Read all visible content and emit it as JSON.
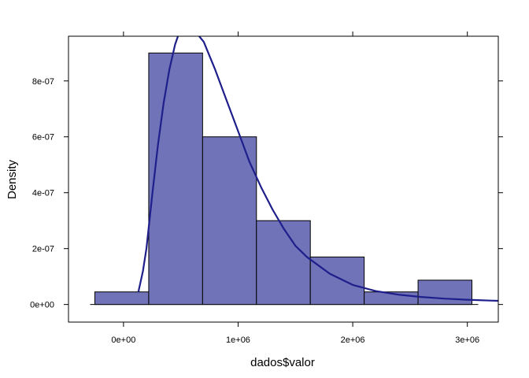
{
  "chart_data": {
    "type": "histogram",
    "xlabel": "dados$valor",
    "ylabel": "Density",
    "xlim": [
      -480000,
      3270000
    ],
    "ylim": [
      -6.3e-08,
      9.6e-07
    ],
    "x_ticks": [
      {
        "value": 0,
        "label": "0e+00"
      },
      {
        "value": 1000000,
        "label": "1e+06"
      },
      {
        "value": 2000000,
        "label": "2e+06"
      },
      {
        "value": 3000000,
        "label": "3e+06"
      }
    ],
    "y_ticks": [
      {
        "value": 0,
        "label": "0e+00"
      },
      {
        "value": 2e-07,
        "label": "2e-07"
      },
      {
        "value": 4e-07,
        "label": "4e-07"
      },
      {
        "value": 6e-07,
        "label": "6e-07"
      },
      {
        "value": 8e-07,
        "label": "8e-07"
      }
    ],
    "bins": [
      {
        "start": -250000,
        "end": 220000,
        "density": 4.5e-08
      },
      {
        "start": 220000,
        "end": 690000,
        "density": 9e-07
      },
      {
        "start": 690000,
        "end": 1160000,
        "density": 6e-07
      },
      {
        "start": 1160000,
        "end": 1630000,
        "density": 3e-07
      },
      {
        "start": 1630000,
        "end": 2100000,
        "density": 1.7e-07
      },
      {
        "start": 2100000,
        "end": 2570000,
        "density": 4.5e-08
      },
      {
        "start": 2570000,
        "end": 3040000,
        "density": 8.7e-08
      }
    ],
    "density_curve": {
      "x": [
        130000,
        170000,
        200000,
        250000,
        300000,
        350000,
        400000,
        450000,
        500000,
        550000,
        600000,
        650000,
        700000,
        750000,
        800000,
        900000,
        1000000,
        1100000,
        1200000,
        1300000,
        1400000,
        1500000,
        1600000,
        1800000,
        2000000,
        2200000,
        2400000,
        2600000,
        2800000,
        3000000,
        3200000,
        3270000
      ],
      "y": [
        4.5e-08,
        1.2e-07,
        2e-07,
        3.9e-07,
        5.7e-07,
        7.2e-07,
        8.4e-07,
        9.3e-07,
        9.9e-07,
        1e-06,
        9.9e-07,
        9.65e-07,
        9.4e-07,
        8.9e-07,
        8.4e-07,
        7.3e-07,
        6.2e-07,
        5.1e-07,
        4.2e-07,
        3.4e-07,
        2.7e-07,
        2.1e-07,
        1.7e-07,
        1.1e-07,
        7e-08,
        4.8e-08,
        3.5e-08,
        2.7e-08,
        2.1e-08,
        1.7e-08,
        1.4e-08,
        1.3e-08
      ]
    },
    "colors": {
      "bar_fill": "#7073b8",
      "bar_stroke": "#000000",
      "curve": "#1f1f8c",
      "axis": "#000000"
    },
    "grid": false
  }
}
